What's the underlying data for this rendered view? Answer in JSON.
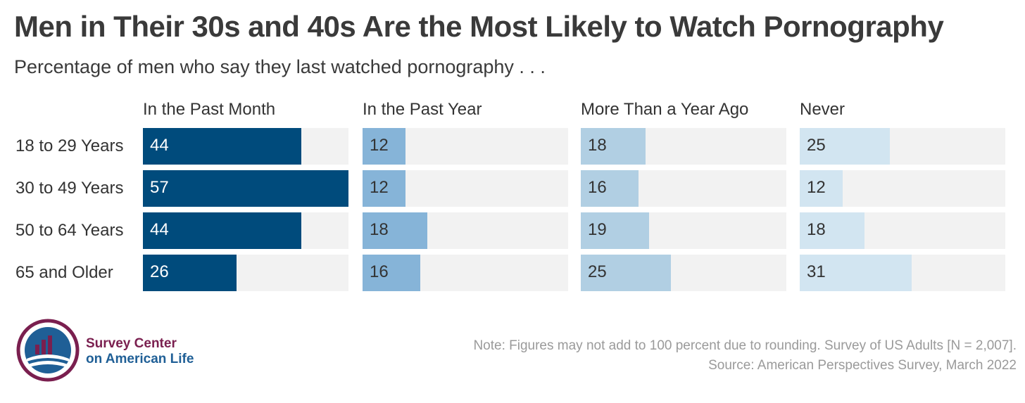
{
  "title": "Men in Their 30s and 40s Are the Most Likely to Watch Pornography",
  "subtitle": "Percentage of men who say they last watched pornography . . .",
  "chart_data": {
    "type": "bar",
    "orientation": "horizontal",
    "layout": "small-multiples",
    "categories": [
      "18 to 29 Years",
      "30 to 49 Years",
      "50 to 64 Years",
      "65 and Older"
    ],
    "series": [
      {
        "name": "In the Past Month",
        "values": [
          44,
          57,
          44,
          26
        ],
        "color": "#004b7c",
        "label_color": "#ffffff"
      },
      {
        "name": "In the Past Year",
        "values": [
          12,
          12,
          18,
          16
        ],
        "color": "#86b4d8",
        "label_color": "#333333"
      },
      {
        "name": "More Than a Year Ago",
        "values": [
          18,
          16,
          19,
          25
        ],
        "color": "#b1cfe3",
        "label_color": "#333333"
      },
      {
        "name": "Never",
        "values": [
          25,
          12,
          18,
          31
        ],
        "color": "#d2e5f1",
        "label_color": "#333333"
      }
    ],
    "xlim": [
      0,
      57
    ],
    "track_color": "#f2f2f2"
  },
  "footer": {
    "logo": {
      "line1": "Survey Center",
      "line2": "on American Life",
      "color_primary": "#7a1f4f",
      "color_secondary": "#1f5f96"
    },
    "note": "Note: Figures may not add to 100 percent due to rounding. Survey of US Adults [N = 2,007].",
    "source": "Source: American Perspectives Survey, March 2022"
  }
}
